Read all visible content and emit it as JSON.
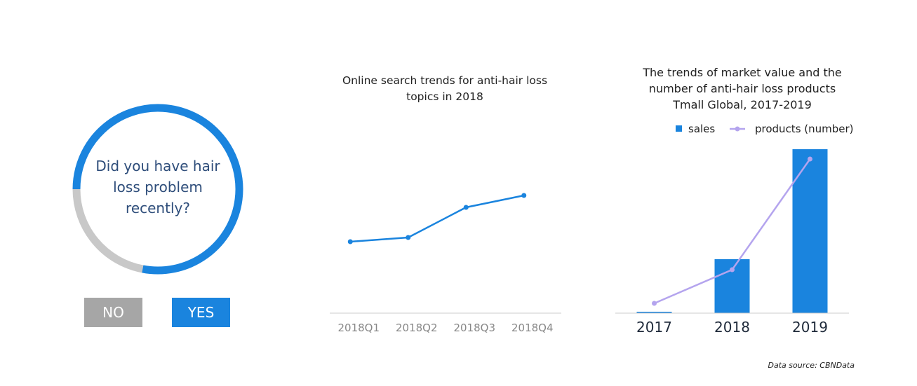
{
  "chart_data": [
    {
      "type": "donut",
      "center_text": "Did you have hair loss problem recently?",
      "values": [
        78,
        22
      ],
      "colors": [
        "#1a84de",
        "#c8c8c8"
      ]
    },
    {
      "type": "line",
      "title": "Online search trends for anti-hair loss topics in 2018",
      "categories": [
        "2018Q1",
        "2018Q2",
        "2018Q3",
        "2018Q4"
      ],
      "values": [
        102,
        108,
        151,
        168
      ],
      "color": "#1a84de",
      "ylim": [
        0,
        200
      ]
    },
    {
      "type": "combo",
      "title": "The trends of market value and the number of anti-hair loss products Tmall Global, 2017-2019",
      "categories": [
        "2017",
        "2018",
        "2019"
      ],
      "ylim": [
        0,
        240
      ],
      "series": [
        {
          "name": "sales",
          "type": "bar",
          "color": "#1a84de",
          "values": [
            2,
            77,
            234
          ]
        },
        {
          "name": "products (number)",
          "type": "line",
          "color": "#b4a4ee",
          "values": [
            14,
            62,
            220
          ]
        }
      ]
    }
  ],
  "buttons": [
    "NO",
    "YES"
  ],
  "source": "Data source: CBNData"
}
